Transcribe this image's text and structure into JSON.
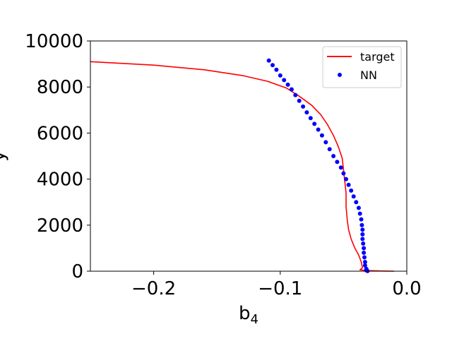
{
  "chart_data": {
    "type": "scatter",
    "title": "",
    "xlabel": "b",
    "xlabel_sub": "4",
    "ylabel": "y",
    "xlim": [
      -0.25,
      0.0
    ],
    "ylim": [
      0,
      10000
    ],
    "x_ticks": [
      -0.2,
      -0.1,
      0.0
    ],
    "x_tick_labels": [
      "−0.2",
      "−0.1",
      "0.0"
    ],
    "y_ticks": [
      0,
      2000,
      4000,
      6000,
      8000,
      10000
    ],
    "y_tick_labels": [
      "0",
      "2000",
      "4000",
      "6000",
      "8000",
      "10000"
    ],
    "grid": false,
    "legend_position": "top-right",
    "series": [
      {
        "name": "target",
        "kind": "line",
        "color": "#ff0000",
        "x": [
          -0.25,
          -0.2,
          -0.16,
          -0.13,
          -0.11,
          -0.095,
          -0.085,
          -0.075,
          -0.068,
          -0.063,
          -0.058,
          -0.054,
          -0.051,
          -0.05,
          -0.049,
          -0.048,
          -0.048,
          -0.047,
          -0.046,
          -0.044,
          -0.041,
          -0.038,
          -0.036,
          -0.035,
          -0.037,
          -0.034,
          -0.03,
          -0.02,
          -0.01
        ],
        "y": [
          9100,
          8950,
          8750,
          8500,
          8250,
          7950,
          7600,
          7200,
          6800,
          6400,
          5900,
          5400,
          4900,
          4400,
          3900,
          3400,
          2800,
          2200,
          1800,
          1400,
          1000,
          700,
          400,
          150,
          60,
          40,
          25,
          10,
          0
        ]
      },
      {
        "name": "NN",
        "kind": "scatter",
        "color": "#0000ff",
        "x": [
          -0.109,
          -0.106,
          -0.103,
          -0.1,
          -0.097,
          -0.094,
          -0.091,
          -0.088,
          -0.085,
          -0.082,
          -0.079,
          -0.076,
          -0.073,
          -0.07,
          -0.067,
          -0.064,
          -0.061,
          -0.058,
          -0.055,
          -0.052,
          -0.05,
          -0.048,
          -0.046,
          -0.044,
          -0.042,
          -0.04,
          -0.038,
          -0.037,
          -0.036,
          -0.0355,
          -0.035,
          -0.035,
          -0.035,
          -0.0345,
          -0.034,
          -0.034,
          -0.0335,
          -0.033,
          -0.033,
          -0.032,
          -0.032,
          -0.031
        ],
        "y": [
          9150,
          8950,
          8750,
          8500,
          8300,
          8100,
          7900,
          7650,
          7400,
          7150,
          6900,
          6650,
          6400,
          6150,
          5900,
          5600,
          5300,
          5000,
          4750,
          4500,
          4250,
          4000,
          3750,
          3500,
          3250,
          3000,
          2750,
          2500,
          2250,
          2000,
          1800,
          1600,
          1400,
          1200,
          1000,
          800,
          600,
          400,
          250,
          100,
          40,
          10
        ]
      }
    ]
  }
}
